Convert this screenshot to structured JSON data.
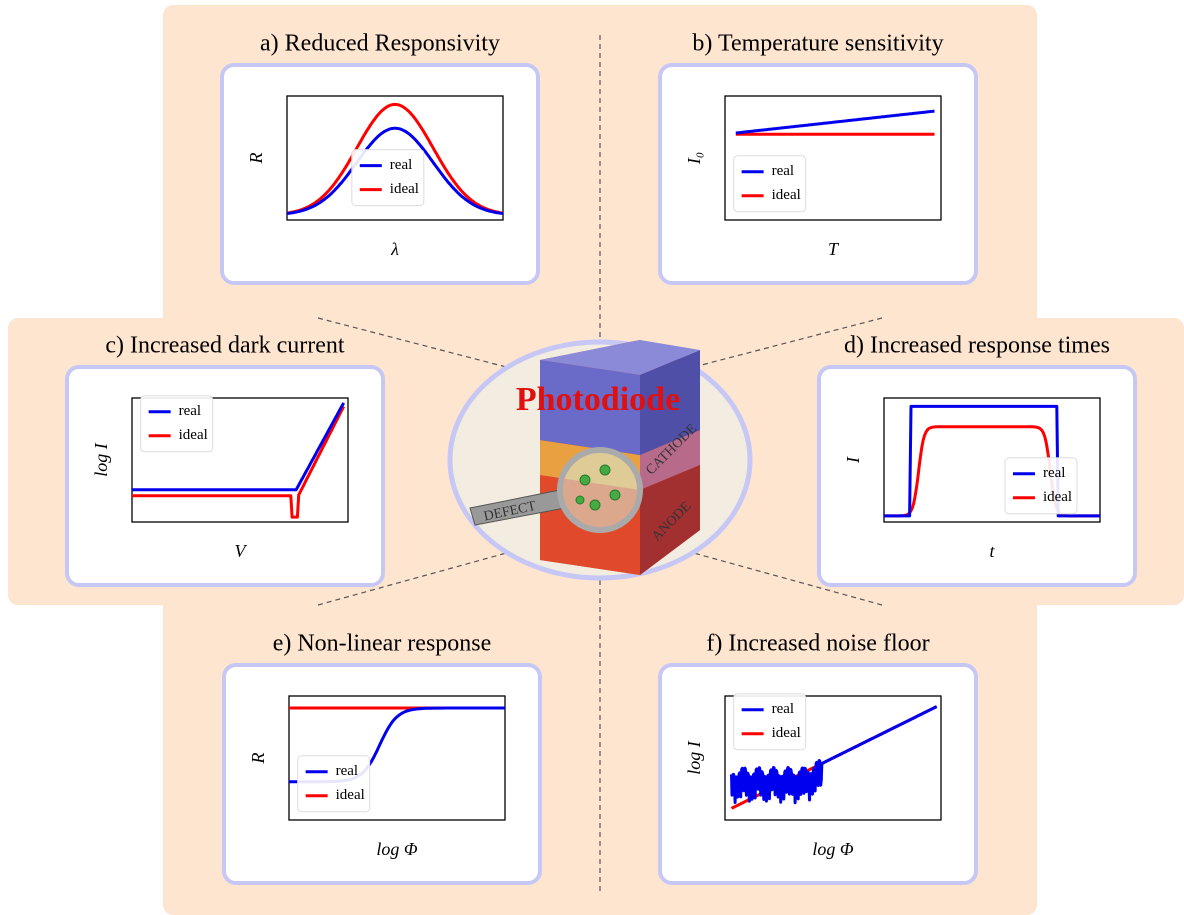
{
  "center": {
    "title": "Photodiode",
    "labels": [
      "DEFECT",
      "CATHODE",
      "ANODE"
    ]
  },
  "panels": [
    {
      "title": "a) Reduced Responsivity",
      "x_label": "λ",
      "y_label": "R",
      "legend": [
        "real",
        "ideal"
      ]
    },
    {
      "title": "b) Temperature sensitivity",
      "x_label": "T",
      "y_label": "I₀",
      "legend": [
        "real",
        "ideal"
      ]
    },
    {
      "title": "c) Increased dark current",
      "x_label": "V",
      "y_label": "log I",
      "legend": [
        "real",
        "ideal"
      ]
    },
    {
      "title": "d) Increased response times",
      "x_label": "t",
      "y_label": "I",
      "legend": [
        "real",
        "ideal"
      ]
    },
    {
      "title": "e) Non-linear response",
      "x_label": "log Φ",
      "y_label": "R",
      "legend": [
        "real",
        "ideal"
      ]
    },
    {
      "title": "f) Increased noise floor",
      "x_label": "log Φ",
      "y_label": "log I",
      "legend": [
        "real",
        "ideal"
      ]
    }
  ]
}
